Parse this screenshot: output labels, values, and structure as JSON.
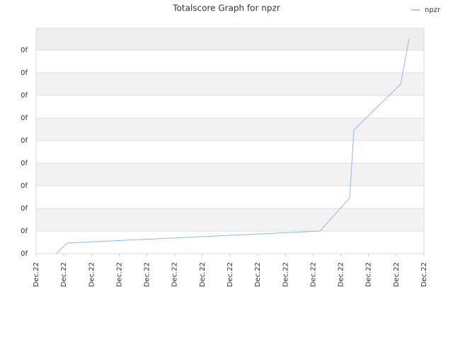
{
  "chart_data": {
    "type": "line",
    "title": "Totalscore Graph for npzr",
    "x": [
      0.72,
      1.12,
      10.25,
      11.32,
      11.47,
      13.16,
      13.46
    ],
    "series": [
      {
        "name": "npzr",
        "color": "#88bbee",
        "values": [
          0,
          0.47,
          1.0,
          2.47,
          5.47,
          7.5,
          9.5
        ]
      }
    ],
    "xlim": [
      0,
      14
    ],
    "xticks": [
      {
        "value": 0,
        "label": "Dec.22"
      },
      {
        "value": 1,
        "label": "Dec.22"
      },
      {
        "value": 2,
        "label": "Dec.22"
      },
      {
        "value": 3,
        "label": "Dec.22"
      },
      {
        "value": 4,
        "label": "Dec.22"
      },
      {
        "value": 5,
        "label": "Dec.22"
      },
      {
        "value": 6,
        "label": "Dec.22"
      },
      {
        "value": 7,
        "label": "Dec.22"
      },
      {
        "value": 8,
        "label": "Dec.22"
      },
      {
        "value": 9,
        "label": "Dec.22"
      },
      {
        "value": 10,
        "label": "Dec.22"
      },
      {
        "value": 11,
        "label": "Dec.22"
      },
      {
        "value": 12,
        "label": "Dec.22"
      },
      {
        "value": 13,
        "label": "Dec.22"
      },
      {
        "value": 14,
        "label": "Dec.22"
      }
    ],
    "ylim": [
      0,
      9.97
    ],
    "yticks": [
      {
        "value": 0,
        "label": "0f"
      },
      {
        "value": 1,
        "label": "0f"
      },
      {
        "value": 2,
        "label": "0f"
      },
      {
        "value": 3,
        "label": "0f"
      },
      {
        "value": 4,
        "label": "0f"
      },
      {
        "value": 5,
        "label": "0f"
      },
      {
        "value": 6,
        "label": "0f"
      },
      {
        "value": 7,
        "label": "0f"
      },
      {
        "value": 8,
        "label": "0f"
      },
      {
        "value": 9,
        "label": "0f"
      }
    ],
    "grid": true,
    "legend": "top-right"
  }
}
